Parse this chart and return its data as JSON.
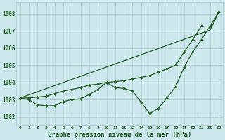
{
  "hours": [
    0,
    1,
    2,
    3,
    4,
    5,
    6,
    7,
    8,
    9,
    10,
    11,
    12,
    13,
    14,
    15,
    16,
    17,
    18,
    19,
    20,
    21,
    22,
    23
  ],
  "line_straight": [
    1003.1,
    1003.28,
    1003.46,
    1003.64,
    1003.82,
    1004.0,
    1004.18,
    1004.36,
    1004.54,
    1004.72,
    1004.9,
    1005.08,
    1005.26,
    1005.44,
    1005.62,
    1005.8,
    1005.98,
    1006.16,
    1006.34,
    1006.52,
    1006.7,
    1006.88,
    1007.06,
    1008.1
  ],
  "line_wavy": [
    1003.1,
    1003.0,
    1002.7,
    1002.65,
    1002.65,
    1002.9,
    1003.0,
    1003.05,
    1003.3,
    1003.6,
    1004.0,
    1003.7,
    1003.65,
    1003.5,
    1002.85,
    1002.2,
    1002.5,
    1003.1,
    1003.75,
    1004.9,
    1005.8,
    1006.5,
    1007.3,
    1008.1
  ],
  "line_upper": [
    1003.1,
    1003.1,
    1003.15,
    1003.2,
    1003.35,
    1003.5,
    1003.6,
    1003.7,
    1003.85,
    1003.9,
    1004.0,
    1004.05,
    1004.1,
    1004.2,
    1004.3,
    1004.4,
    1004.6,
    1004.8,
    1005.0,
    1005.8,
    1006.5,
    1007.3,
    null,
    null
  ],
  "ylim": [
    1001.5,
    1008.7
  ],
  "yticks": [
    1002,
    1003,
    1004,
    1005,
    1006,
    1007,
    1008
  ],
  "bg_color": "#cde8ed",
  "line_color": "#1e5c1e",
  "grid_color": "#b0cccc",
  "xlabel": "Graphe pression niveau de la mer (hPa)"
}
